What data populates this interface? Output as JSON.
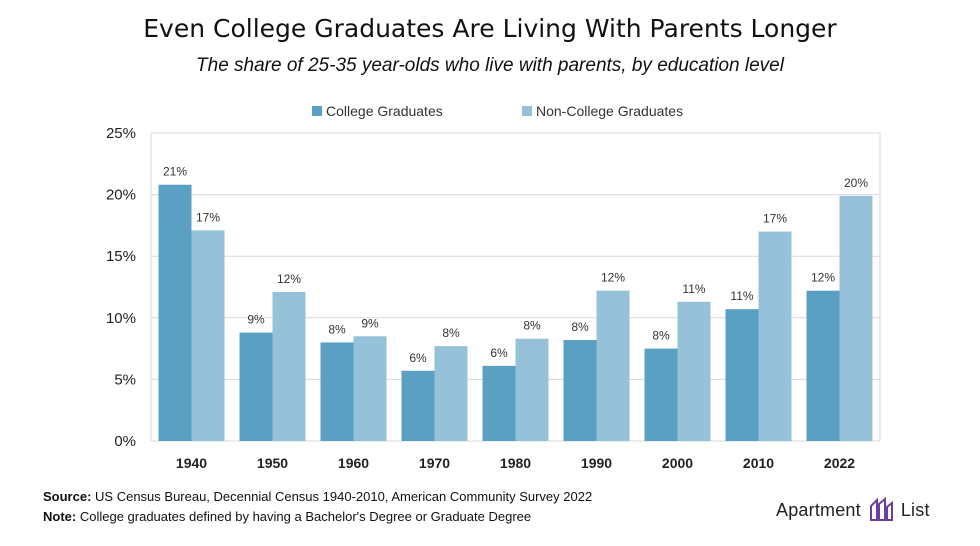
{
  "title": "Even College Graduates Are Living With Parents Longer",
  "subtitle": "The share of 25-35 year-olds who live with parents, by education level",
  "colors": {
    "college": "#5AA0C3",
    "non_college": "#95C1D9",
    "grid": "#d9d9d9",
    "logo": "#6b3fa0"
  },
  "chart_data": {
    "type": "bar",
    "categories": [
      "1940",
      "1950",
      "1960",
      "1970",
      "1980",
      "1990",
      "2000",
      "2010",
      "2022"
    ],
    "series": [
      {
        "name": "College Graduates",
        "values": [
          20.8,
          8.8,
          8.0,
          5.7,
          6.1,
          8.2,
          7.5,
          10.7,
          12.2
        ],
        "labels": [
          "21%",
          "9%",
          "8%",
          "6%",
          "6%",
          "8%",
          "8%",
          "11%",
          "12%"
        ]
      },
      {
        "name": "Non-College Graduates",
        "values": [
          17.1,
          12.1,
          8.5,
          7.7,
          8.3,
          12.2,
          11.3,
          17.0,
          19.9
        ],
        "labels": [
          "17%",
          "12%",
          "9%",
          "8%",
          "8%",
          "12%",
          "11%",
          "17%",
          "20%"
        ]
      }
    ],
    "ylim": [
      0,
      25
    ],
    "yticks": [
      0,
      5,
      10,
      15,
      20,
      25
    ],
    "ytick_labels": [
      "0%",
      "5%",
      "10%",
      "15%",
      "20%",
      "25%"
    ],
    "grid": true,
    "legend": "top-center"
  },
  "footer": {
    "source_label": "Source:",
    "source_text": "US Census Bureau, Decennial Census 1940-2010, American Community Survey 2022",
    "note_label": "Note:",
    "note_text": "College graduates defined by having a Bachelor's Degree or Graduate Degree"
  },
  "logo": {
    "word1": "Apartment",
    "word2": "List",
    "icon": "apartment-list-logo-icon"
  }
}
